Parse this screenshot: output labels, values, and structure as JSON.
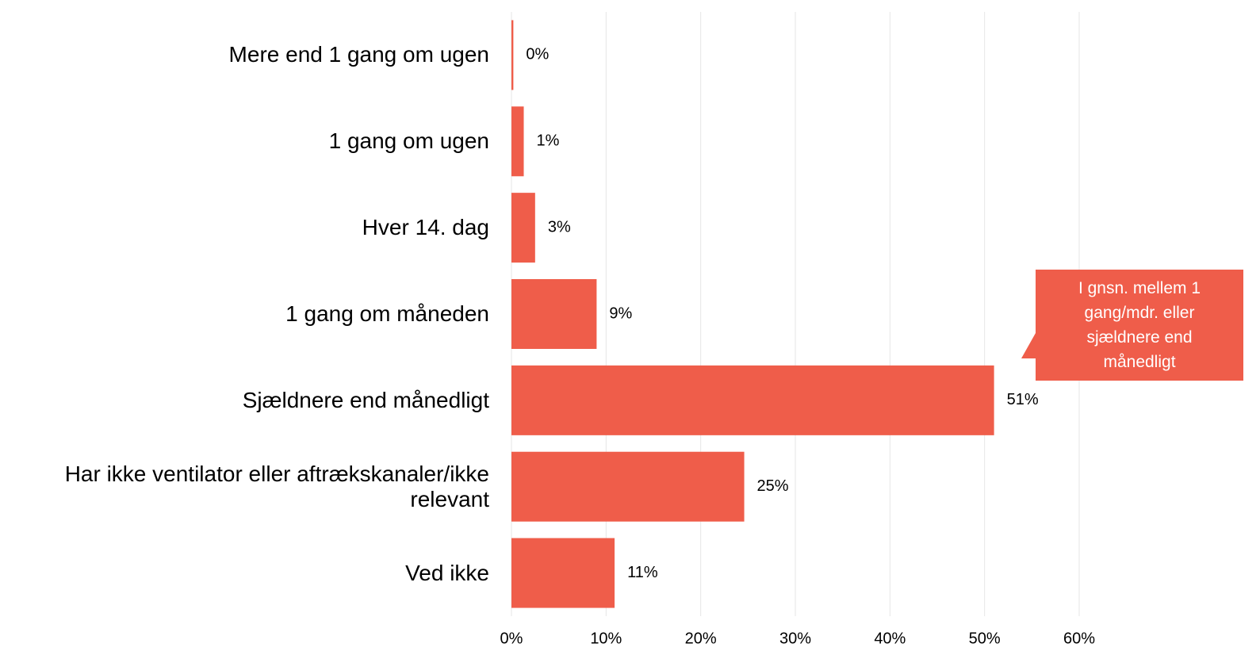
{
  "chart_data": {
    "type": "bar",
    "orientation": "horizontal",
    "categories": [
      "Mere end 1 gang om ugen",
      "1 gang om ugen",
      "Hver 14. dag",
      "1 gang om måneden",
      "Sjældnere end månedligt",
      "Har ikke ventilator eller aftrækskanaler/ikke relevant",
      "Ved ikke"
    ],
    "values": [
      0.2,
      1.3,
      2.5,
      9,
      51,
      24.6,
      10.9
    ],
    "value_labels": [
      "0%",
      "1%",
      "3%",
      "9%",
      "51%",
      "25%",
      "11%"
    ],
    "color": "#ef5d4a",
    "xlim": [
      0,
      60
    ],
    "xticks": [
      {
        "value": 0,
        "label": "0%"
      },
      {
        "value": 10,
        "label": "10%"
      },
      {
        "value": 20,
        "label": "20%"
      },
      {
        "value": 30,
        "label": "30%"
      },
      {
        "value": 40,
        "label": "40%"
      },
      {
        "value": 50,
        "label": "50%"
      },
      {
        "value": 60,
        "label": "60%"
      }
    ],
    "grid": true,
    "annotation": [
      "I gnsn. mellem 1",
      "gang/mdr. eller",
      "sjældnere end",
      "månedligt"
    ]
  }
}
